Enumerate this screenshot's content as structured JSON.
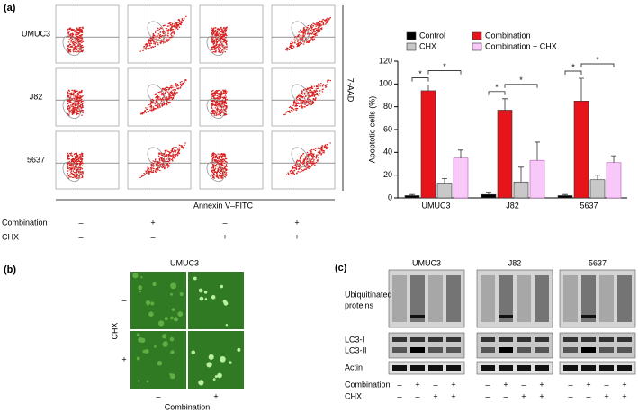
{
  "panel_labels": [
    "(a)",
    "(b)",
    "(c)"
  ],
  "flow": {
    "cell_lines": [
      "UMUC3",
      "J82",
      "5637"
    ],
    "x_axis_label": "Annexin V–FITC",
    "y_axis_label": "7-AAD",
    "treatments": [
      {
        "name": "Combination",
        "signs": [
          "–",
          "+",
          "–",
          "+"
        ]
      },
      {
        "name": "CHX",
        "signs": [
          "–",
          "–",
          "+",
          "+"
        ]
      }
    ]
  },
  "chart_data": {
    "type": "bar",
    "y_axis_label": "Apoptotic cells (%)",
    "categories": [
      "UMUC3",
      "J82",
      "5637"
    ],
    "series": [
      {
        "name": "Control",
        "color": "#000000",
        "values": [
          2,
          3,
          2
        ],
        "errors": [
          1,
          2,
          1
        ]
      },
      {
        "name": "Combination",
        "color": "#e8141c",
        "values": [
          94,
          77,
          85
        ],
        "errors": [
          5,
          10,
          20
        ]
      },
      {
        "name": "CHX",
        "color": "#c8c8c8",
        "values": [
          13,
          14,
          16
        ],
        "errors": [
          4,
          13,
          4
        ]
      },
      {
        "name": "Combination + CHX",
        "color": "#f8c8f8",
        "values": [
          35,
          33,
          31
        ],
        "errors": [
          7,
          16,
          6
        ]
      }
    ],
    "ylim": [
      0,
      120
    ],
    "yticks": [
      0,
      20,
      40,
      60,
      80,
      100,
      120
    ],
    "annotations": [
      "*",
      "*",
      "*",
      "*",
      "*",
      "*"
    ]
  },
  "microscopy": {
    "title": "UMUC3",
    "row_label": "CHX",
    "row_signs": [
      "–",
      "+"
    ],
    "column_label": "Combination",
    "column_signs": [
      "–",
      "+"
    ]
  },
  "blot": {
    "cell_lines": [
      "UMUC3",
      "J82",
      "5637"
    ],
    "ubiquitinated_label": [
      "Ubiquitinated",
      "proteins"
    ],
    "lc3_labels": [
      "LC3-I",
      "LC3-II"
    ],
    "loading_label": "Actin",
    "treatments": [
      {
        "name": "Combination",
        "signs": [
          "–",
          "+",
          "–",
          "+"
        ]
      },
      {
        "name": "CHX",
        "signs": [
          "–",
          "–",
          "+",
          "+"
        ]
      }
    ]
  }
}
